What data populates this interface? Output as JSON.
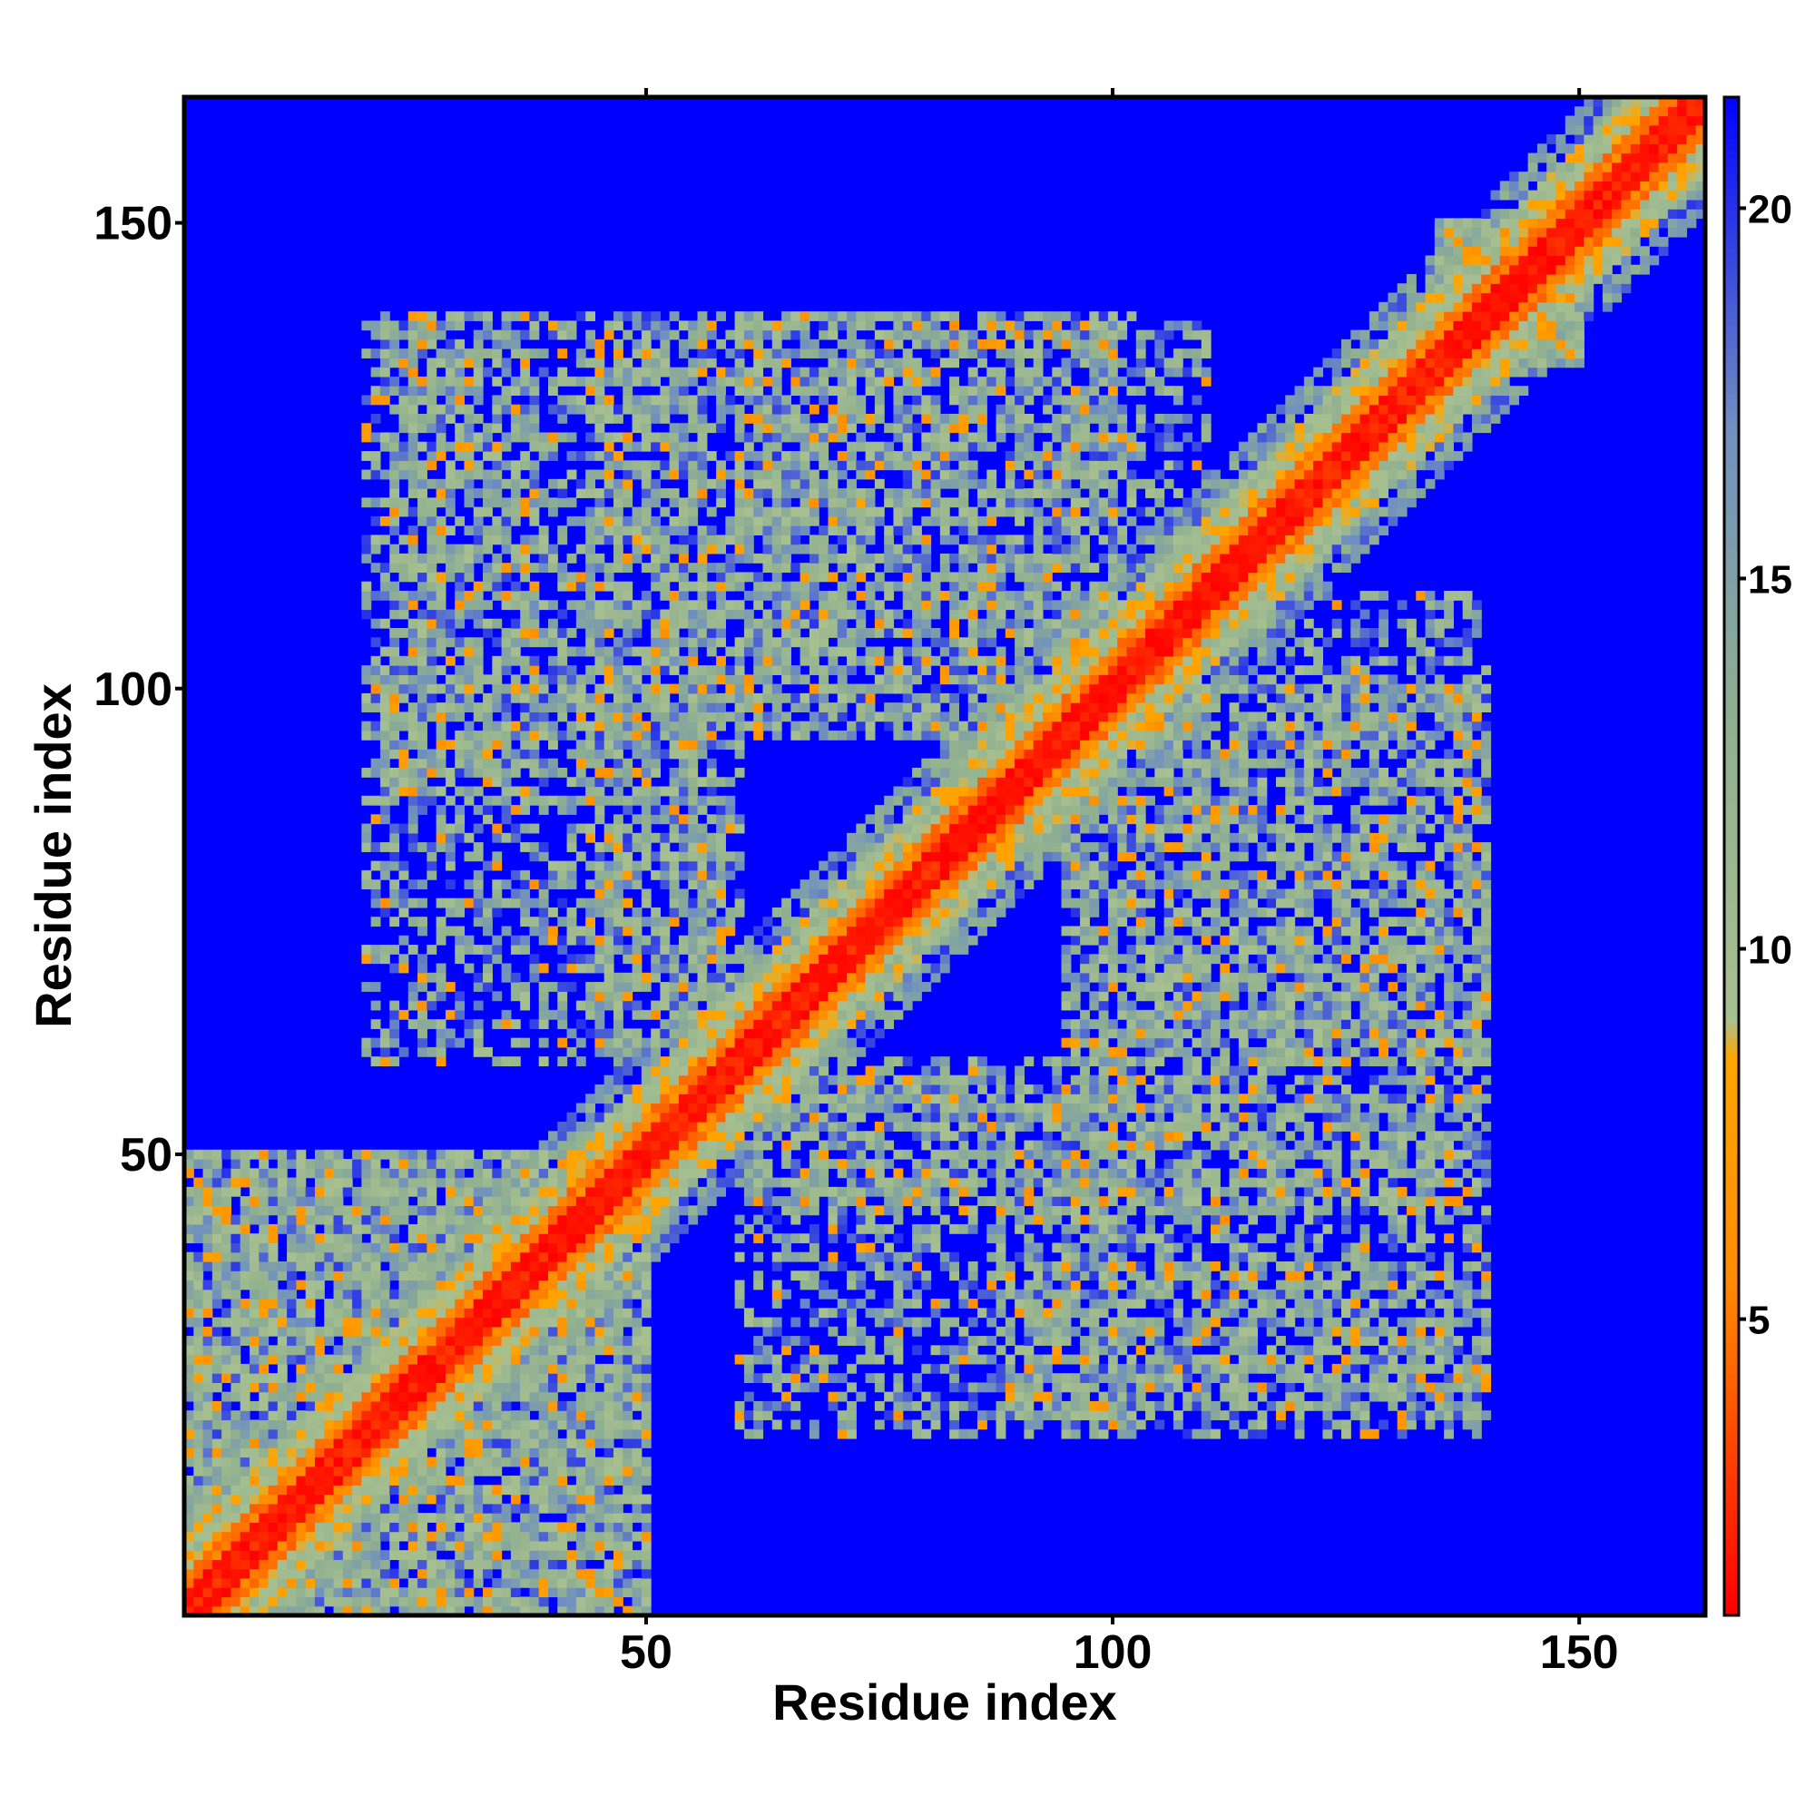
{
  "chart_data": {
    "type": "heatmap",
    "title": "",
    "xlabel": "Residue index",
    "ylabel": "Residue index",
    "xlim": [
      1,
      163
    ],
    "ylim": [
      1,
      163
    ],
    "x_ticks": [
      50,
      100,
      150
    ],
    "y_ticks": [
      50,
      100,
      150
    ],
    "colorbar": {
      "ticks": [
        5,
        10,
        15,
        20
      ],
      "range": [
        1,
        21.5
      ],
      "stops": [
        {
          "value": 1,
          "color": "#ff0000"
        },
        {
          "value": 5.5,
          "color": "#ff8c00"
        },
        {
          "value": 8.5,
          "color": "#ffa500"
        },
        {
          "value": 9.0,
          "color": "#a8c090"
        },
        {
          "value": 13.0,
          "color": "#90b090"
        },
        {
          "value": 17.0,
          "color": "#7090c0"
        },
        {
          "value": 21.5,
          "color": "#0000ff"
        }
      ]
    },
    "background_value": 21.5,
    "colors": {
      "background": "#0000ff",
      "diagonal": "#ff0000",
      "near": "#ff8c00",
      "mid": "#a8c090",
      "far": "#7090c0"
    },
    "matrix_description_contact_regions": [
      {
        "i": [
          1,
          50
        ],
        "j": [
          1,
          50
        ],
        "strength": 0.7
      },
      {
        "i": [
          22,
          38
        ],
        "j": [
          88,
          140
        ],
        "strength": 0.55
      },
      {
        "i": [
          44,
          58
        ],
        "j": [
          60,
          140
        ],
        "strength": 0.5
      },
      {
        "i": [
          60,
          100
        ],
        "j": [
          95,
          140
        ],
        "strength": 0.55
      },
      {
        "i": [
          60,
          100
        ],
        "j": [
          20,
          60
        ],
        "strength": 0.45
      },
      {
        "i": [
          95,
          140
        ],
        "j": [
          20,
          110
        ],
        "strength": 0.45
      },
      {
        "i": [
          135,
          150
        ],
        "j": [
          135,
          150
        ],
        "strength": 0.8
      }
    ]
  }
}
